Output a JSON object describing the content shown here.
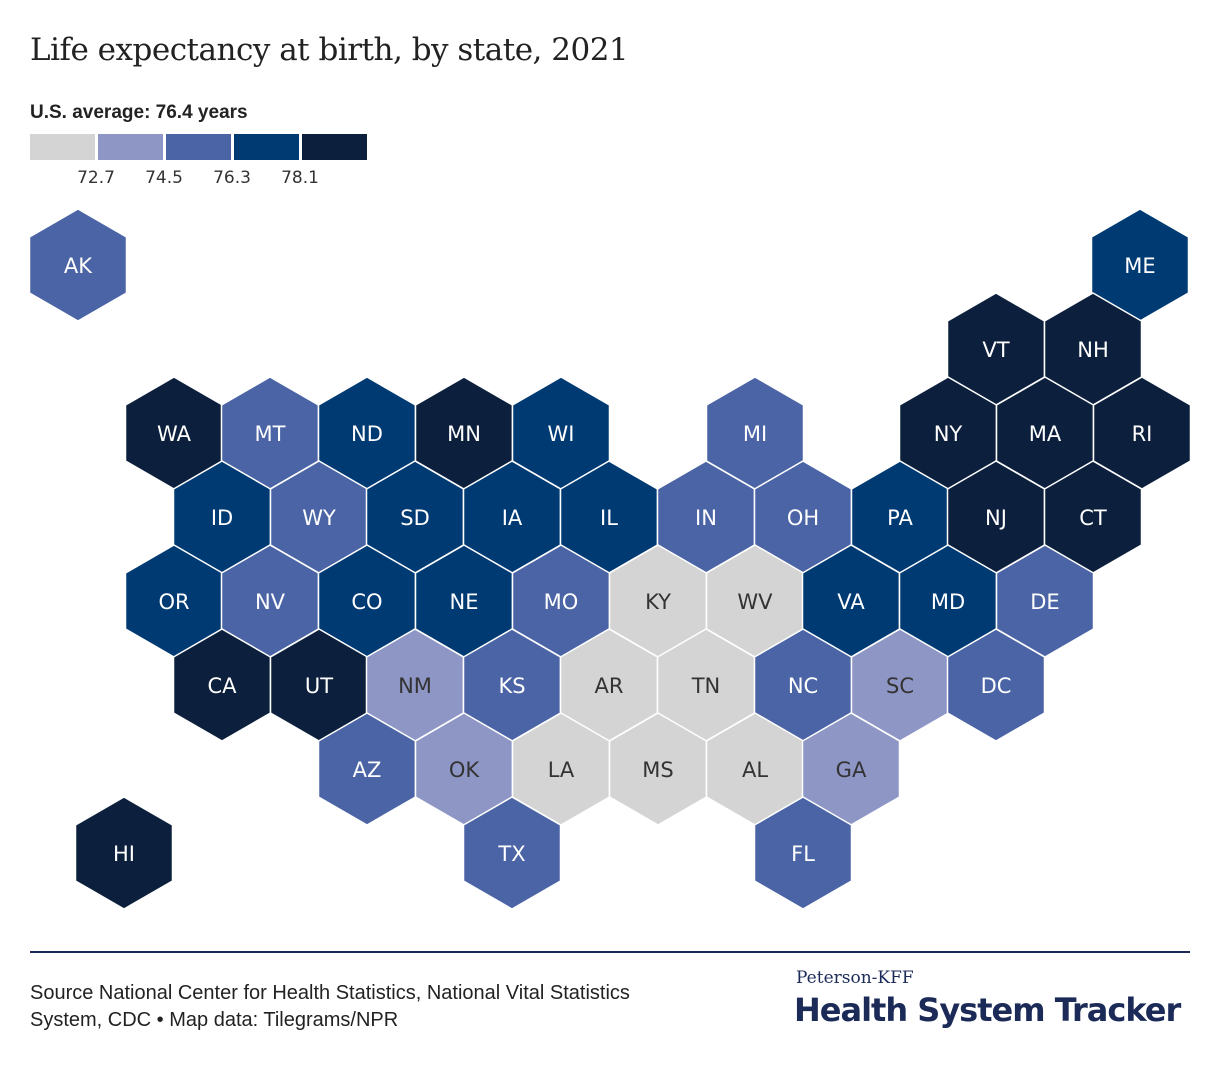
{
  "title": "Life expectancy at birth, by state, 2021",
  "subtitle": "U.S. average: 76.4 years",
  "legend": {
    "colors": [
      "#d4d4d4",
      "#8e96c6",
      "#4b64a5",
      "#003a73",
      "#0c1f3c"
    ],
    "thresholds": [
      "72.7",
      "74.5",
      "76.3",
      "78.1"
    ]
  },
  "label_colors": {
    "light": "#333333",
    "dark": "#ffffff"
  },
  "map_data": {
    "states": [
      {
        "abbr": "AK",
        "bin": 2
      },
      {
        "abbr": "ME",
        "bin": 3
      },
      {
        "abbr": "VT",
        "bin": 4
      },
      {
        "abbr": "NH",
        "bin": 4
      },
      {
        "abbr": "WA",
        "bin": 4
      },
      {
        "abbr": "MT",
        "bin": 2
      },
      {
        "abbr": "ND",
        "bin": 3
      },
      {
        "abbr": "MN",
        "bin": 4
      },
      {
        "abbr": "WI",
        "bin": 3
      },
      {
        "abbr": "MI",
        "bin": 2
      },
      {
        "abbr": "NY",
        "bin": 4
      },
      {
        "abbr": "MA",
        "bin": 4
      },
      {
        "abbr": "RI",
        "bin": 4
      },
      {
        "abbr": "ID",
        "bin": 3
      },
      {
        "abbr": "WY",
        "bin": 2
      },
      {
        "abbr": "SD",
        "bin": 3
      },
      {
        "abbr": "IA",
        "bin": 3
      },
      {
        "abbr": "IL",
        "bin": 3
      },
      {
        "abbr": "IN",
        "bin": 2
      },
      {
        "abbr": "OH",
        "bin": 2
      },
      {
        "abbr": "PA",
        "bin": 3
      },
      {
        "abbr": "NJ",
        "bin": 4
      },
      {
        "abbr": "CT",
        "bin": 4
      },
      {
        "abbr": "OR",
        "bin": 3
      },
      {
        "abbr": "NV",
        "bin": 2
      },
      {
        "abbr": "CO",
        "bin": 3
      },
      {
        "abbr": "NE",
        "bin": 3
      },
      {
        "abbr": "MO",
        "bin": 2
      },
      {
        "abbr": "KY",
        "bin": 0
      },
      {
        "abbr": "WV",
        "bin": 0
      },
      {
        "abbr": "VA",
        "bin": 3
      },
      {
        "abbr": "MD",
        "bin": 3
      },
      {
        "abbr": "DE",
        "bin": 2
      },
      {
        "abbr": "CA",
        "bin": 4
      },
      {
        "abbr": "UT",
        "bin": 4
      },
      {
        "abbr": "NM",
        "bin": 1
      },
      {
        "abbr": "KS",
        "bin": 2
      },
      {
        "abbr": "AR",
        "bin": 0
      },
      {
        "abbr": "TN",
        "bin": 0
      },
      {
        "abbr": "NC",
        "bin": 2
      },
      {
        "abbr": "SC",
        "bin": 1
      },
      {
        "abbr": "DC",
        "bin": 2
      },
      {
        "abbr": "AZ",
        "bin": 2
      },
      {
        "abbr": "OK",
        "bin": 1
      },
      {
        "abbr": "LA",
        "bin": 0
      },
      {
        "abbr": "MS",
        "bin": 0
      },
      {
        "abbr": "AL",
        "bin": 0
      },
      {
        "abbr": "GA",
        "bin": 1
      },
      {
        "abbr": "HI",
        "bin": 4
      },
      {
        "abbr": "TX",
        "bin": 2
      },
      {
        "abbr": "FL",
        "bin": 2
      }
    ]
  },
  "footer": {
    "source": "Source National Center for Health Statistics, National Vital Statistics System, CDC • Map data: Tilegrams/NPR",
    "brand_top": "Peterson-KFF",
    "brand_main": "Health System Tracker"
  }
}
